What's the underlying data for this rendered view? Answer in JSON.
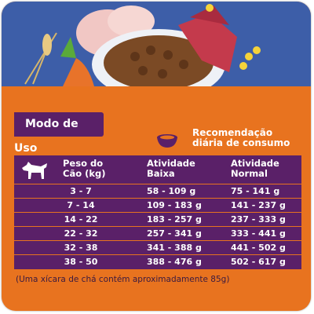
{
  "section_title": "Modo de Uso",
  "recommendation": "Recomendação diária de consumo",
  "table": {
    "headers": [
      "Peso do Cão (kg)",
      "Atividade Baixa",
      "Atividade Normal"
    ],
    "rows": [
      [
        "3 - 7",
        "58 - 109 g",
        "75 - 141 g"
      ],
      [
        "7 - 14",
        "109 - 183 g",
        "141 - 237 g"
      ],
      [
        "14 - 22",
        "183 - 257 g",
        "237 - 333 g"
      ],
      [
        "22 - 32",
        "257 - 341 g",
        "333 - 441 g"
      ],
      [
        "32 - 38",
        "341 - 388 g",
        "441 - 502 g"
      ],
      [
        "38 - 50",
        "388 - 476 g",
        "502 - 617 g"
      ]
    ]
  },
  "note": "(Uma xícara de chá contém aproximadamente 85g)"
}
